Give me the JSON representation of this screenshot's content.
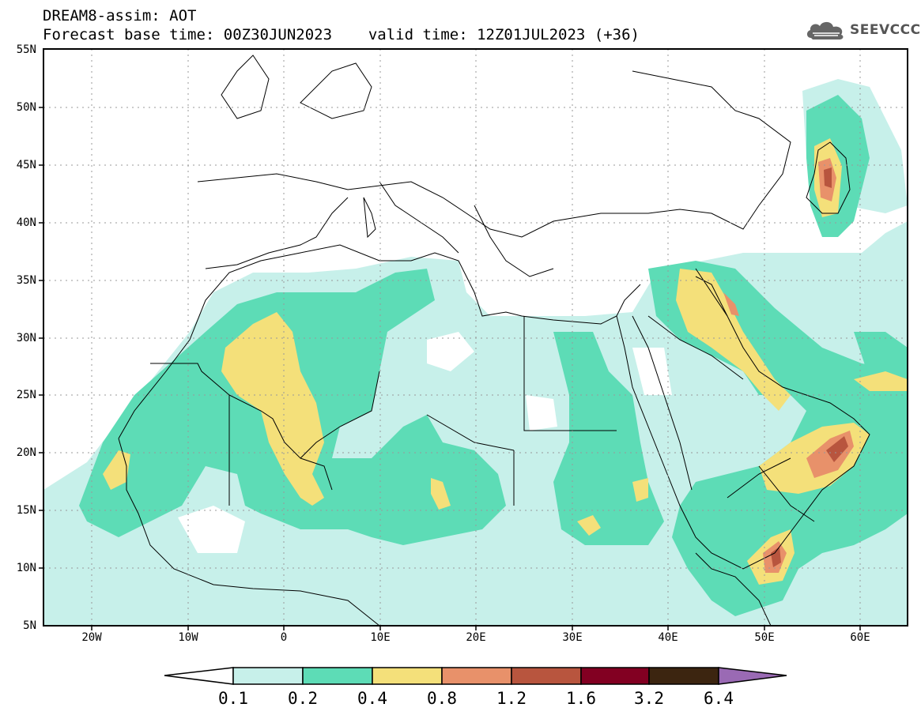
{
  "title": {
    "line1": "DREAM8-assim: AOT",
    "base_time": "Forecast base time: 00Z30JUN2023",
    "valid_time": "valid time: 12Z01JUL2023 (+36)"
  },
  "logo": {
    "text": "SEEVCCC",
    "icon": "cloud-icon"
  },
  "map": {
    "lat_labels": [
      "55N",
      "50N",
      "45N",
      "40N",
      "35N",
      "30N",
      "25N",
      "20N",
      "15N",
      "10N",
      "5N"
    ],
    "lon_labels": [
      "20W",
      "10W",
      "0",
      "10E",
      "20E",
      "30E",
      "40E",
      "50E",
      "60E"
    ],
    "colors": {
      "c01": "#c7f0ea",
      "c02": "#5ddcb6",
      "c04": "#f4e07a",
      "c08": "#e8916a",
      "c12": "#b8553e",
      "c16": "#820022",
      "c32": "#3c2510",
      "c64": "#9a6ab4"
    }
  },
  "colorbar": {
    "labels": [
      "0.1",
      "0.2",
      "0.4",
      "0.8",
      "1.2",
      "1.6",
      "3.2",
      "6.4"
    ]
  }
}
